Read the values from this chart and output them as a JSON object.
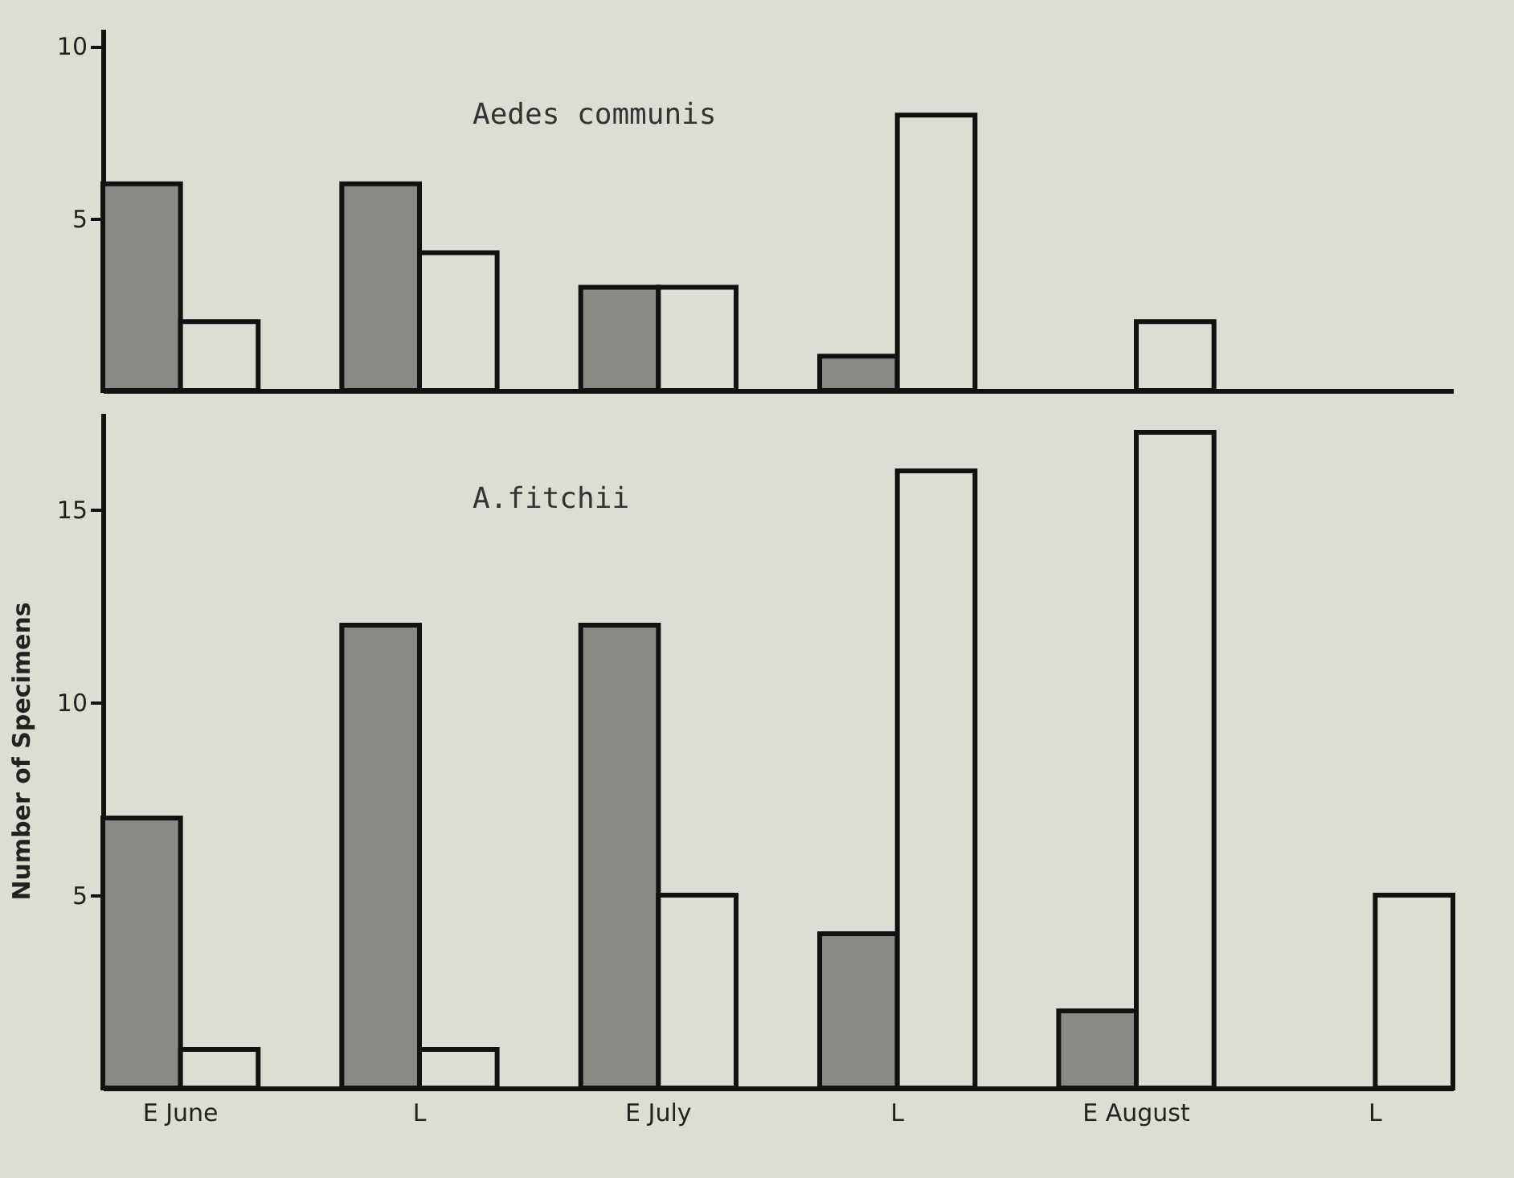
{
  "chart_data": [
    {
      "type": "bar",
      "annotations": [
        "Aedes communis"
      ],
      "categories": [
        null,
        null,
        null,
        null,
        null,
        null
      ],
      "series": [
        {
          "color": "#8a8a84",
          "values": [
            6,
            6,
            3,
            1,
            null,
            null
          ]
        },
        {
          "color": "#deddd3",
          "values": [
            2,
            4,
            3,
            8,
            2,
            null
          ]
        }
      ],
      "ylim": [
        0,
        10.5
      ],
      "yticks": [
        5,
        10
      ],
      "tick_labels": "y"
    },
    {
      "type": "bar",
      "ylabel": "Number of Specimens",
      "annotations": [
        "A.fitchii"
      ],
      "categories": [
        "E June",
        "L",
        "E July",
        "L",
        "E August",
        "L"
      ],
      "series": [
        {
          "color": "#8a8a84",
          "values": [
            7,
            12,
            12,
            4,
            2,
            null
          ]
        },
        {
          "color": "#deddd3",
          "values": [
            1,
            1,
            5,
            16,
            17,
            5
          ]
        }
      ],
      "ylim": [
        0,
        17.5
      ],
      "yticks": [
        5,
        10,
        15
      ]
    }
  ]
}
